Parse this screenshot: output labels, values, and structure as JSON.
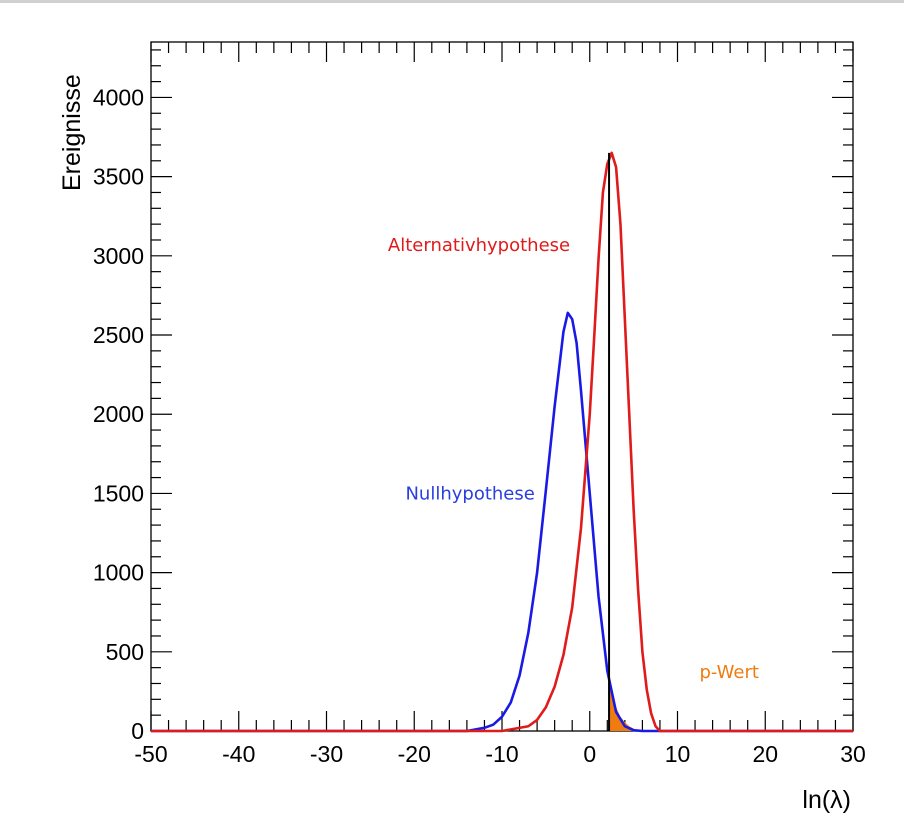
{
  "chart_data": {
    "type": "line",
    "title": "",
    "xlabel": "ln(λ)",
    "ylabel": "Ereignisse",
    "xlim": [
      -50,
      30
    ],
    "ylim": [
      0,
      4350
    ],
    "x_ticks": [
      "-50",
      "-40",
      "-30",
      "-20",
      "-10",
      "0",
      "10",
      "20",
      "30"
    ],
    "y_ticks": [
      "0",
      "500",
      "1000",
      "1500",
      "2000",
      "2500",
      "3000",
      "3500",
      "4000"
    ],
    "series": [
      {
        "name": "Nullhypothese",
        "color": "#1a1ae6",
        "x": [
          -50,
          -14,
          -12,
          -11,
          -10,
          -9,
          -8,
          -7,
          -6,
          -5,
          -4,
          -3,
          -2.5,
          -2,
          -1.5,
          -1,
          0,
          1,
          2,
          3,
          4,
          5,
          6,
          7,
          30
        ],
        "y": [
          0,
          0,
          20,
          40,
          90,
          180,
          350,
          620,
          1000,
          1520,
          2050,
          2520,
          2640,
          2600,
          2450,
          2150,
          1500,
          850,
          380,
          120,
          30,
          5,
          0,
          0,
          0
        ]
      },
      {
        "name": "Alternativhypothese",
        "color": "#e01b1b",
        "x": [
          -50,
          -10,
          -7,
          -6,
          -5,
          -4,
          -3,
          -2,
          -1,
          0,
          0.5,
          1,
          1.5,
          2,
          2.5,
          3,
          3.5,
          4,
          4.5,
          5,
          5.5,
          6,
          6.5,
          7,
          7.5,
          8,
          30
        ],
        "y": [
          0,
          0,
          30,
          70,
          150,
          280,
          480,
          780,
          1280,
          2000,
          2480,
          2980,
          3400,
          3580,
          3650,
          3560,
          3200,
          2600,
          2000,
          1400,
          900,
          500,
          260,
          110,
          30,
          0,
          0
        ]
      }
    ],
    "vertical_line": {
      "x": 2.2,
      "color": "#000000"
    },
    "shaded_region": {
      "label": "p-Wert",
      "color": "#f07c10",
      "x": [
        2.2,
        2.6,
        3,
        3.5,
        4,
        4.5,
        5,
        5.5,
        6,
        6.5
      ],
      "y": [
        300,
        230,
        150,
        90,
        55,
        30,
        15,
        5,
        2,
        0
      ]
    },
    "annotations": [
      {
        "text": "Alternativhypothese",
        "color": "#e01b1b",
        "x": -23,
        "y": 3030
      },
      {
        "text": "Nullhypothese",
        "color": "#2a3ee0",
        "x": -21,
        "y": 1460
      },
      {
        "text": "p-Wert",
        "color": "#f07c10",
        "x": 12.5,
        "y": 335
      }
    ]
  }
}
